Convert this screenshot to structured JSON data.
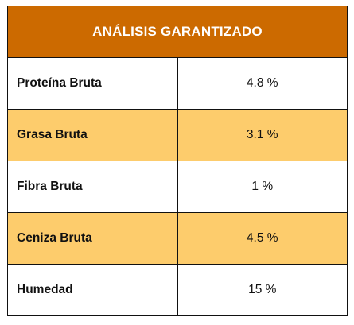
{
  "table": {
    "header": "ANÁLISIS GARANTIZADO",
    "rows": [
      {
        "label": "Proteína Bruta",
        "value": "4.8 %"
      },
      {
        "label": "Grasa Bruta",
        "value": "3.1 %"
      },
      {
        "label": "Fibra Bruta",
        "value": "1 %"
      },
      {
        "label": "Ceniza Bruta",
        "value": "4.5 %"
      },
      {
        "label": "Humedad",
        "value": "15 %"
      }
    ]
  },
  "colors": {
    "header_bg": "#cc6a00",
    "header_text": "#ffffff",
    "alt_row_bg": "#fdcc6c",
    "plain_row_bg": "#ffffff",
    "border": "#111111"
  }
}
